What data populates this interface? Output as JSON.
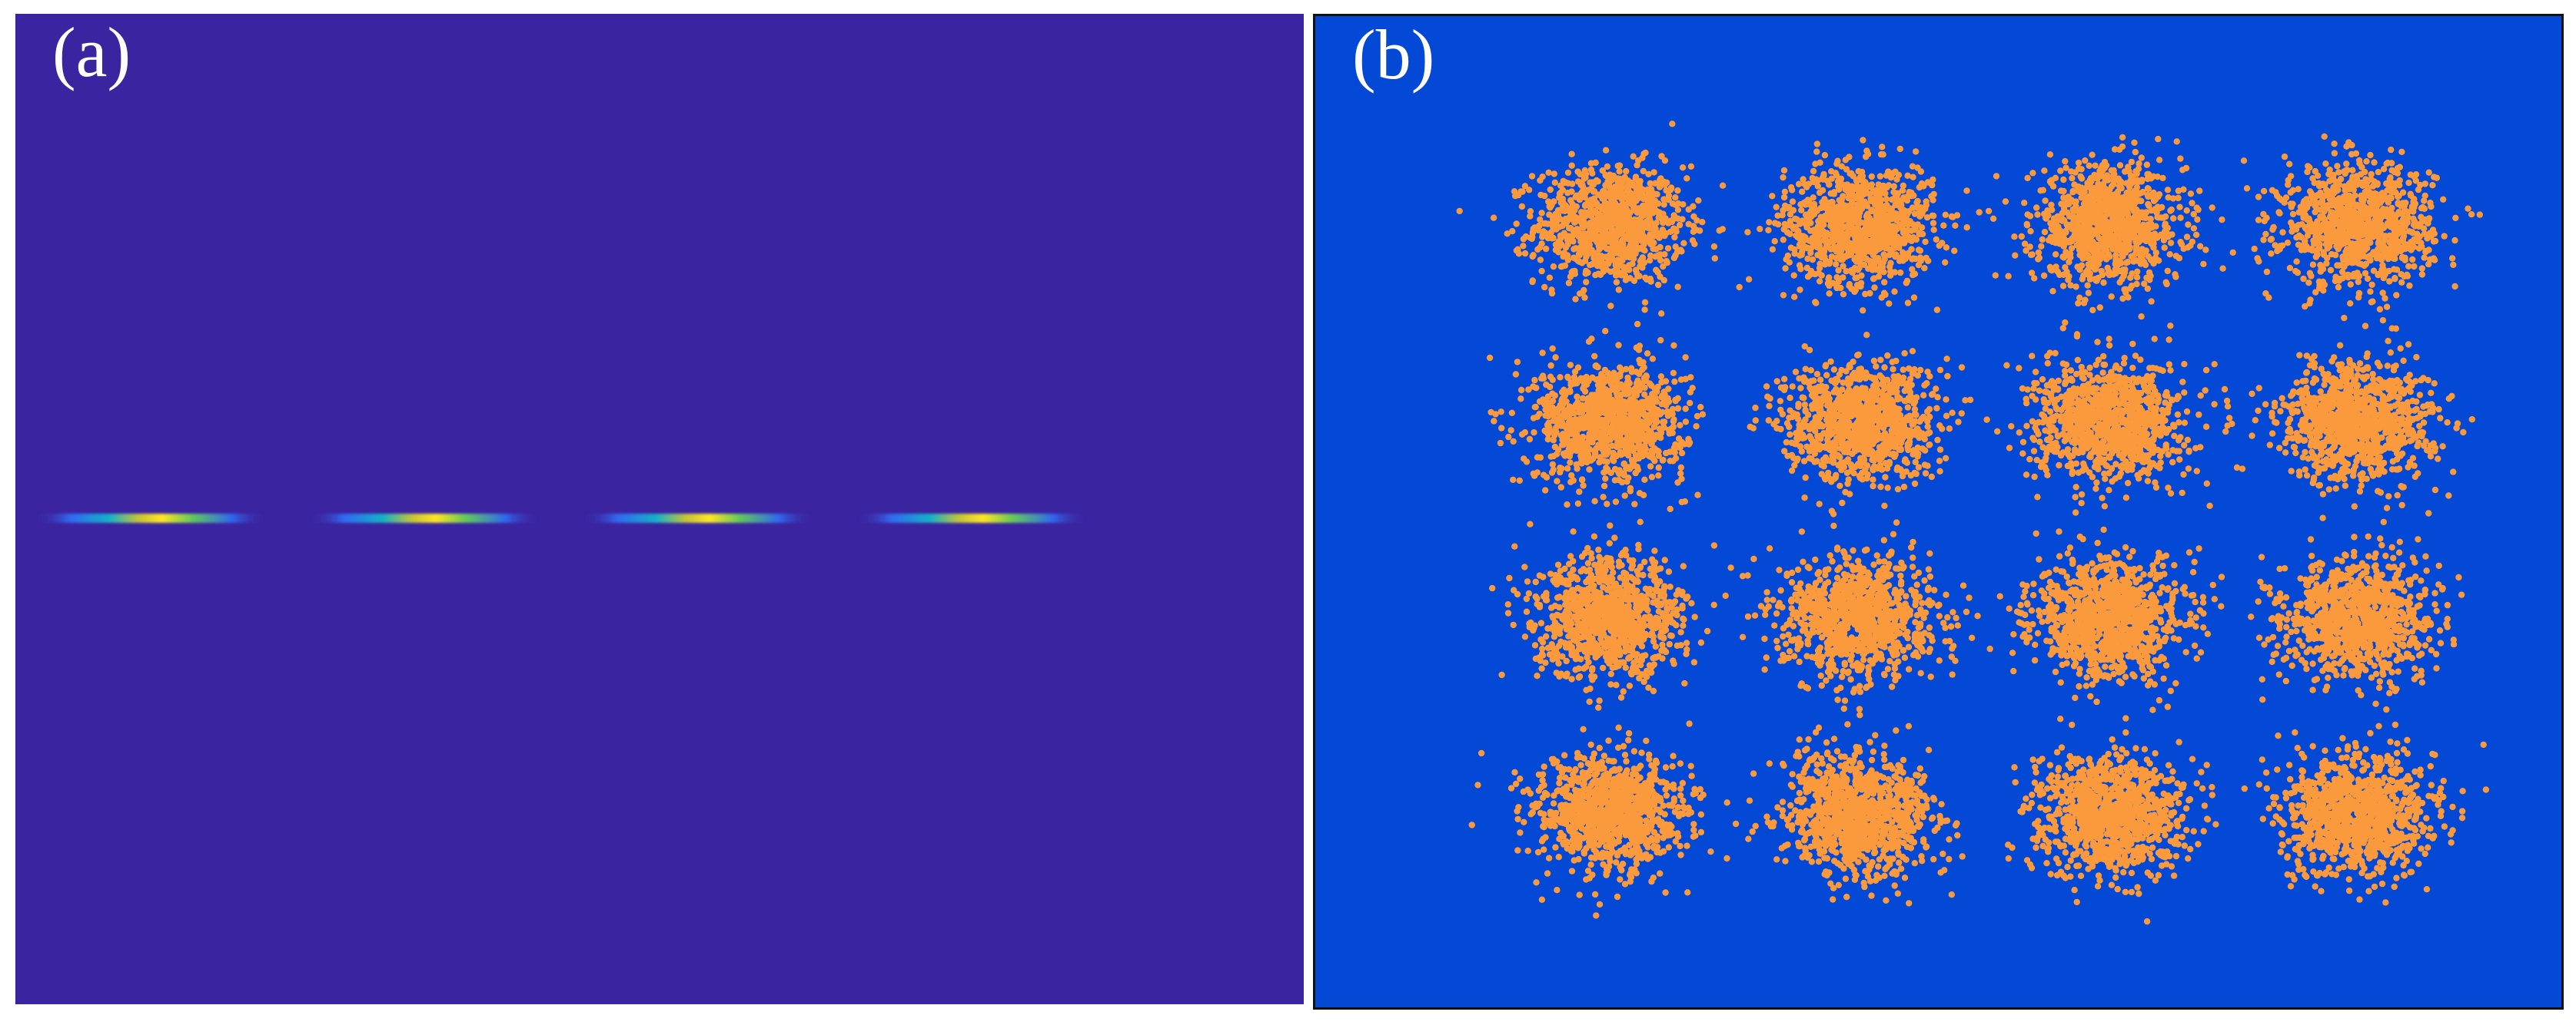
{
  "chart_data": [
    {
      "panel": "a",
      "label": "(a)",
      "type": "heatmap",
      "colormap": "parula",
      "background_color": "#3b24a0",
      "x": [
        -0.8,
        -0.4,
        0.0,
        0.4
      ],
      "y": [
        0.0,
        0.0,
        0.0,
        0.0
      ],
      "values": [
        1.0,
        1.0,
        1.0,
        1.0
      ]
    },
    {
      "panel": "b",
      "label": "(b)",
      "type": "scatter",
      "background_color": "#0448d6",
      "point_color": "#fb9a3c",
      "cluster_centers_x": [
        -3,
        -1,
        1,
        3
      ],
      "cluster_centers_y": [
        3,
        1,
        -1,
        -3
      ],
      "points_per_cluster": 1000,
      "noise_std": 0.3
    }
  ]
}
